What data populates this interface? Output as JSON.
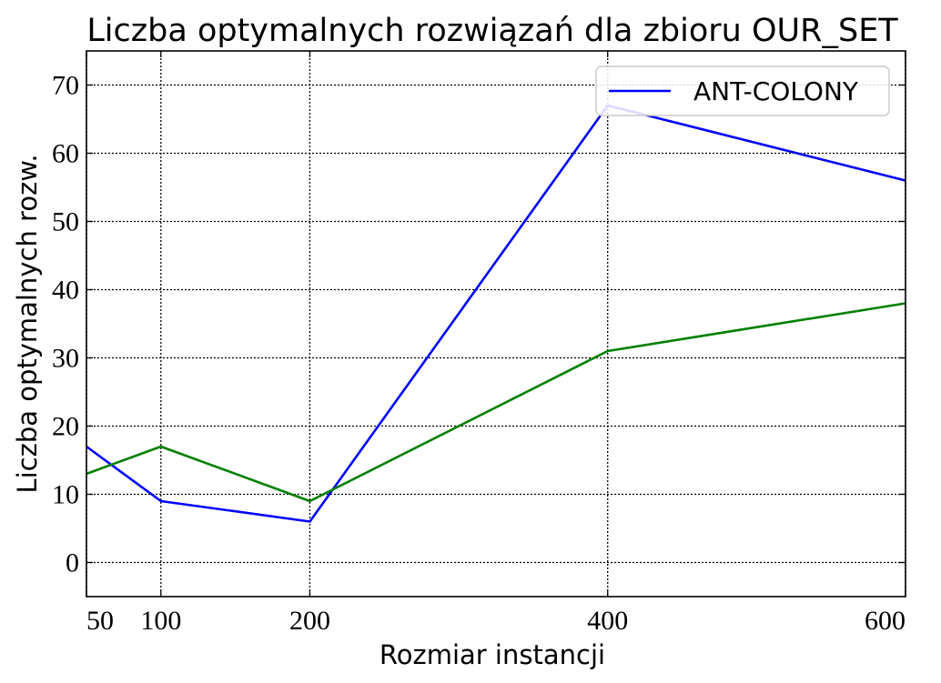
{
  "chart_data": {
    "type": "line",
    "title": "Liczba optymalnych rozwiązań dla zbioru OUR_SET",
    "xlabel": "Rozmiar instancji",
    "ylabel": "Liczba optymalnych rozw.",
    "x": [
      50,
      100,
      200,
      400,
      600
    ],
    "x_ticks": [
      "50",
      "100",
      "200",
      "400",
      "600"
    ],
    "y_ticks": [
      "0",
      "10",
      "20",
      "30",
      "40",
      "50",
      "60",
      "70"
    ],
    "xlim": [
      50,
      600
    ],
    "ylim": [
      -5,
      75
    ],
    "grid": true,
    "legend_position": "top-right",
    "series": [
      {
        "name": "ANT-COLONY",
        "color": "#0000ff",
        "values": [
          17,
          9,
          6,
          67,
          56
        ]
      },
      {
        "color": "#008000",
        "values": [
          13,
          17,
          9,
          31,
          38
        ]
      }
    ]
  }
}
